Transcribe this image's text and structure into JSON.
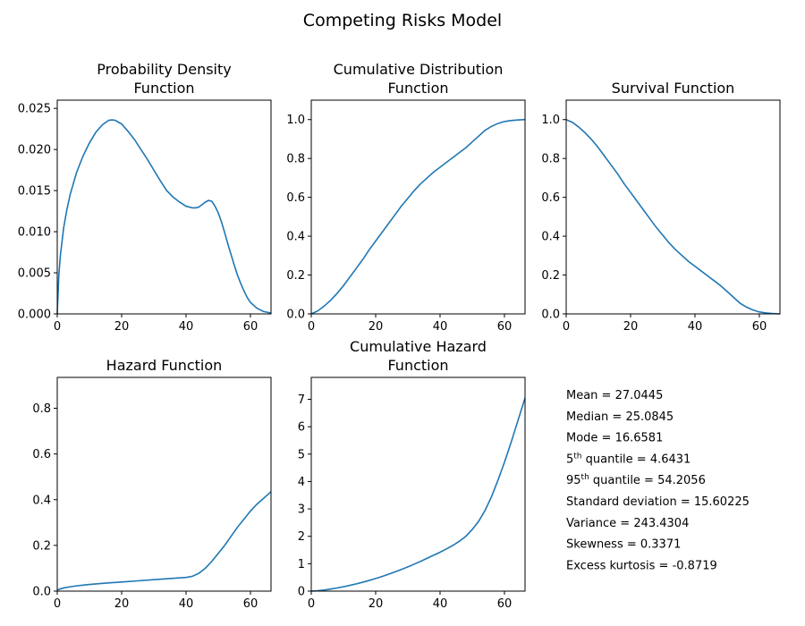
{
  "suptitle": "Competing Risks Model",
  "chart_data": [
    {
      "id": "pdf",
      "type": "line",
      "title": [
        "Probability Density",
        "Function"
      ],
      "xlim": [
        0,
        66.4
      ],
      "ylim": [
        0,
        0.026
      ],
      "xticks": [
        0,
        20,
        40,
        60
      ],
      "yticks": [
        0,
        0.005,
        0.01,
        0.015,
        0.02,
        0.025
      ],
      "ytick_labels": [
        "0.000",
        "0.005",
        "0.010",
        "0.015",
        "0.020",
        "0.025"
      ],
      "xtick_labels": [
        "0",
        "20",
        "40",
        "60"
      ],
      "x": [
        0,
        0.5,
        1,
        2,
        3,
        4,
        6,
        8,
        10,
        12,
        14,
        16,
        17,
        18,
        20,
        22,
        24,
        26,
        28,
        30,
        32,
        34,
        36,
        38,
        40,
        42,
        43,
        44,
        45,
        46,
        47,
        48,
        49,
        50,
        51,
        52,
        53,
        54,
        55,
        56,
        57,
        58,
        59,
        60,
        62,
        64,
        66.4
      ],
      "y": [
        0,
        0.0048,
        0.0072,
        0.0105,
        0.0127,
        0.0145,
        0.0172,
        0.0192,
        0.0208,
        0.0221,
        0.023,
        0.02355,
        0.0236,
        0.02355,
        0.0231,
        0.0222,
        0.0212,
        0.02,
        0.0188,
        0.0175,
        0.0162,
        0.015,
        0.0142,
        0.0136,
        0.0131,
        0.0129,
        0.0129,
        0.013,
        0.0133,
        0.0136,
        0.0138,
        0.0137,
        0.0131,
        0.0123,
        0.0112,
        0.0099,
        0.0085,
        0.0072,
        0.0059,
        0.0047,
        0.0037,
        0.0028,
        0.002,
        0.0014,
        0.0007,
        0.0003,
        0.0001
      ]
    },
    {
      "id": "cdf",
      "type": "line",
      "title": [
        "Cumulative Distribution",
        "Function"
      ],
      "xlim": [
        0,
        66.4
      ],
      "ylim": [
        0,
        1.1
      ],
      "xticks": [
        0,
        20,
        40,
        60
      ],
      "yticks": [
        0,
        0.2,
        0.4,
        0.6,
        0.8,
        1.0
      ],
      "ytick_labels": [
        "0.0",
        "0.2",
        "0.4",
        "0.6",
        "0.8",
        "1.0"
      ],
      "xtick_labels": [
        "0",
        "20",
        "40",
        "60"
      ],
      "x": [
        0,
        2,
        4,
        6,
        8,
        10,
        12,
        14,
        16,
        18,
        20,
        22,
        24,
        26,
        28,
        30,
        32,
        34,
        36,
        38,
        40,
        42,
        44,
        46,
        48,
        50,
        52,
        54,
        56,
        58,
        60,
        62,
        64,
        66.4
      ],
      "y": [
        0,
        0.015,
        0.04,
        0.07,
        0.105,
        0.145,
        0.19,
        0.235,
        0.28,
        0.33,
        0.375,
        0.42,
        0.465,
        0.51,
        0.555,
        0.595,
        0.635,
        0.67,
        0.7,
        0.73,
        0.755,
        0.78,
        0.805,
        0.83,
        0.855,
        0.885,
        0.915,
        0.945,
        0.965,
        0.98,
        0.99,
        0.995,
        0.998,
        1.0
      ]
    },
    {
      "id": "sf",
      "type": "line",
      "title": [
        "Survival Function"
      ],
      "xlim": [
        0,
        66.4
      ],
      "ylim": [
        0,
        1.1
      ],
      "xticks": [
        0,
        20,
        40,
        60
      ],
      "yticks": [
        0,
        0.2,
        0.4,
        0.6,
        0.8,
        1.0
      ],
      "ytick_labels": [
        "0.0",
        "0.2",
        "0.4",
        "0.6",
        "0.8",
        "1.0"
      ],
      "xtick_labels": [
        "0",
        "20",
        "40",
        "60"
      ],
      "x": [
        0,
        2,
        4,
        6,
        8,
        10,
        12,
        14,
        16,
        18,
        20,
        22,
        24,
        26,
        28,
        30,
        32,
        34,
        36,
        38,
        40,
        42,
        44,
        46,
        48,
        50,
        52,
        54,
        56,
        58,
        60,
        62,
        64,
        66.4
      ],
      "y": [
        1.0,
        0.985,
        0.96,
        0.93,
        0.895,
        0.855,
        0.81,
        0.765,
        0.72,
        0.67,
        0.625,
        0.58,
        0.535,
        0.49,
        0.445,
        0.405,
        0.365,
        0.33,
        0.3,
        0.27,
        0.245,
        0.22,
        0.195,
        0.17,
        0.145,
        0.115,
        0.085,
        0.055,
        0.035,
        0.02,
        0.01,
        0.005,
        0.002,
        0.0
      ]
    },
    {
      "id": "hf",
      "type": "line",
      "title": [
        "Hazard Function"
      ],
      "xlim": [
        0,
        66.4
      ],
      "ylim": [
        0,
        0.935
      ],
      "xticks": [
        0,
        20,
        40,
        60
      ],
      "yticks": [
        0,
        0.2,
        0.4,
        0.6,
        0.8
      ],
      "ytick_labels": [
        "0.0",
        "0.2",
        "0.4",
        "0.6",
        "0.8"
      ],
      "xtick_labels": [
        "0",
        "20",
        "40",
        "60"
      ],
      "x": [
        0,
        1,
        2,
        4,
        6,
        8,
        10,
        15,
        20,
        25,
        30,
        35,
        40,
        42,
        44,
        46,
        48,
        50,
        52,
        54,
        56,
        58,
        60,
        62,
        64,
        66.4
      ],
      "y": [
        0.005,
        0.01,
        0.014,
        0.019,
        0.023,
        0.026,
        0.029,
        0.035,
        0.04,
        0.045,
        0.05,
        0.055,
        0.06,
        0.065,
        0.078,
        0.1,
        0.13,
        0.165,
        0.2,
        0.24,
        0.28,
        0.315,
        0.35,
        0.38,
        0.405,
        0.435
      ]
    },
    {
      "id": "chf",
      "type": "line",
      "title": [
        "Cumulative Hazard",
        "Function"
      ],
      "xlim": [
        0,
        66.4
      ],
      "ylim": [
        0,
        7.8
      ],
      "xticks": [
        0,
        20,
        40,
        60
      ],
      "yticks": [
        0,
        1,
        2,
        3,
        4,
        5,
        6,
        7
      ],
      "ytick_labels": [
        "0",
        "1",
        "2",
        "3",
        "4",
        "5",
        "6",
        "7"
      ],
      "xtick_labels": [
        "0",
        "20",
        "40",
        "60"
      ],
      "x": [
        0,
        2,
        4,
        6,
        8,
        10,
        12,
        14,
        16,
        18,
        20,
        22,
        24,
        26,
        28,
        30,
        32,
        34,
        36,
        38,
        40,
        42,
        44,
        46,
        48,
        50,
        52,
        54,
        56,
        58,
        60,
        62,
        64,
        66.4
      ],
      "y": [
        0,
        0.015,
        0.04,
        0.075,
        0.115,
        0.16,
        0.21,
        0.265,
        0.325,
        0.39,
        0.46,
        0.535,
        0.615,
        0.7,
        0.79,
        0.885,
        0.985,
        1.09,
        1.2,
        1.31,
        1.42,
        1.54,
        1.67,
        1.82,
        2.0,
        2.25,
        2.55,
        2.95,
        3.45,
        4.05,
        4.7,
        5.4,
        6.15,
        7.05
      ]
    }
  ],
  "stats": [
    {
      "label": "Mean = ",
      "value": "27.0445"
    },
    {
      "label": "Median = ",
      "value": "25.0845"
    },
    {
      "label": "Mode = ",
      "value": "16.6581"
    },
    {
      "prefix": "5",
      "sup": "th",
      "label": " quantile = ",
      "value": "4.6431"
    },
    {
      "prefix": "95",
      "sup": "th",
      "label": " quantile = ",
      "value": "54.2056"
    },
    {
      "label": "Standard deviation = ",
      "value": "15.60225"
    },
    {
      "label": "Variance = ",
      "value": "243.4304"
    },
    {
      "label": "Skewness = ",
      "value": "0.3371"
    },
    {
      "label": "Excess kurtosis = ",
      "value": "-0.8719"
    }
  ]
}
